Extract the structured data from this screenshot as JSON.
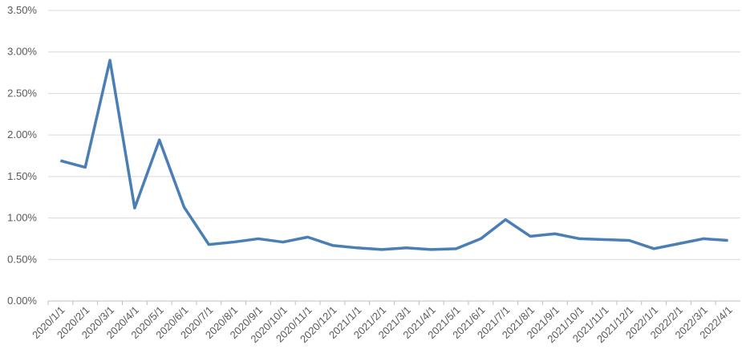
{
  "chart_data": {
    "type": "line",
    "categories": [
      "2020/1/1",
      "2020/2/1",
      "2020/3/1",
      "2020/4/1",
      "2020/5/1",
      "2020/6/1",
      "2020/7/1",
      "2020/8/1",
      "2020/9/1",
      "2020/10/1",
      "2020/11/1",
      "2020/12/1",
      "2021/1/1",
      "2021/2/1",
      "2021/3/1",
      "2021/4/1",
      "2021/5/1",
      "2021/6/1",
      "2021/7/1",
      "2021/8/1",
      "2021/9/1",
      "2021/10/1",
      "2021/11/1",
      "2021/12/1",
      "2022/1/1",
      "2022/2/1",
      "2022/3/1",
      "2022/4/1"
    ],
    "values": [
      1.69,
      1.61,
      2.9,
      1.12,
      1.94,
      1.13,
      0.68,
      0.71,
      0.75,
      0.71,
      0.77,
      0.67,
      0.64,
      0.62,
      0.64,
      0.62,
      0.63,
      0.75,
      0.98,
      0.78,
      0.81,
      0.75,
      0.74,
      0.73,
      0.63,
      0.69,
      0.75,
      0.73
    ],
    "color": "#4a7fb5",
    "ylim": [
      0,
      3.5
    ],
    "yticks": [
      {
        "value": 0,
        "label": "0.00%"
      },
      {
        "value": 0.5,
        "label": "0.50%"
      },
      {
        "value": 1,
        "label": "1.00%"
      },
      {
        "value": 1.5,
        "label": "1.50%"
      },
      {
        "value": 2,
        "label": "2.00%"
      },
      {
        "value": 2.5,
        "label": "2.50%"
      },
      {
        "value": 3,
        "label": "3.00%"
      },
      {
        "value": 3.5,
        "label": "3.50%"
      }
    ],
    "grid": true
  }
}
